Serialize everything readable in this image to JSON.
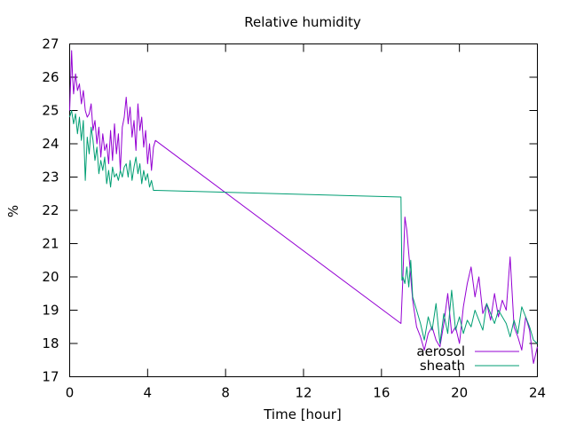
{
  "chart_data": {
    "type": "line",
    "title": "Relative humidity",
    "xlabel": "Time [hour]",
    "ylabel": "%",
    "xlim": [
      0,
      24
    ],
    "ylim": [
      17,
      27
    ],
    "xticks": [
      0,
      4,
      8,
      12,
      16,
      20,
      24
    ],
    "yticks": [
      17,
      18,
      19,
      20,
      21,
      22,
      23,
      24,
      25,
      26,
      27
    ],
    "grid": false,
    "legend_position": "bottom-right",
    "series": [
      {
        "name": "aerosol",
        "color": "#9400d3",
        "x": [
          0.0,
          0.1,
          0.15,
          0.2,
          0.3,
          0.4,
          0.5,
          0.6,
          0.7,
          0.8,
          0.9,
          1.0,
          1.1,
          1.2,
          1.3,
          1.4,
          1.5,
          1.6,
          1.7,
          1.8,
          1.9,
          2.0,
          2.1,
          2.2,
          2.3,
          2.4,
          2.5,
          2.6,
          2.7,
          2.8,
          2.9,
          3.0,
          3.1,
          3.2,
          3.3,
          3.4,
          3.5,
          3.6,
          3.7,
          3.8,
          3.9,
          4.0,
          4.1,
          4.2,
          4.3,
          4.4,
          17.0,
          17.1,
          17.2,
          17.3,
          17.4,
          17.5,
          17.6,
          17.8,
          18.0,
          18.2,
          18.4,
          18.6,
          18.8,
          19.0,
          19.2,
          19.4,
          19.6,
          19.8,
          20.0,
          20.2,
          20.4,
          20.6,
          20.8,
          21.0,
          21.2,
          21.4,
          21.6,
          21.8,
          22.0,
          22.2,
          22.4,
          22.6,
          22.8,
          23.0,
          23.2,
          23.4,
          23.6,
          23.8,
          24.0
        ],
        "y": [
          25.0,
          26.8,
          26.0,
          25.5,
          26.1,
          25.6,
          25.8,
          25.2,
          25.6,
          25.0,
          24.8,
          24.9,
          25.2,
          24.4,
          24.7,
          24.0,
          24.5,
          23.6,
          24.3,
          23.8,
          24.0,
          23.4,
          24.4,
          23.5,
          24.6,
          23.7,
          24.3,
          23.2,
          24.5,
          24.8,
          25.4,
          24.6,
          25.1,
          24.2,
          24.7,
          23.8,
          25.2,
          24.4,
          24.8,
          23.9,
          24.4,
          23.4,
          24.0,
          23.2,
          23.9,
          24.1,
          18.6,
          20.0,
          21.8,
          21.4,
          20.7,
          20.0,
          19.3,
          18.5,
          18.2,
          17.8,
          18.3,
          18.5,
          18.1,
          17.9,
          18.6,
          19.5,
          18.3,
          18.5,
          18.0,
          19.1,
          19.8,
          20.3,
          19.4,
          20.0,
          18.9,
          19.2,
          18.7,
          19.5,
          18.8,
          19.3,
          19.0,
          20.6,
          18.5,
          18.2,
          17.8,
          18.8,
          18.4,
          17.4,
          17.9
        ]
      },
      {
        "name": "sheath",
        "color": "#009e73",
        "x": [
          0.0,
          0.1,
          0.2,
          0.3,
          0.4,
          0.5,
          0.6,
          0.7,
          0.8,
          0.9,
          1.0,
          1.1,
          1.2,
          1.3,
          1.4,
          1.5,
          1.6,
          1.7,
          1.8,
          1.9,
          2.0,
          2.1,
          2.2,
          2.3,
          2.4,
          2.5,
          2.6,
          2.7,
          2.8,
          2.9,
          3.0,
          3.1,
          3.2,
          3.3,
          3.4,
          3.5,
          3.6,
          3.7,
          3.8,
          3.9,
          4.0,
          4.1,
          4.2,
          4.3,
          4.4,
          17.0,
          17.05,
          17.1,
          17.2,
          17.3,
          17.4,
          17.5,
          17.6,
          17.8,
          18.0,
          18.2,
          18.4,
          18.6,
          18.8,
          19.0,
          19.2,
          19.4,
          19.6,
          19.8,
          20.0,
          20.2,
          20.4,
          20.6,
          20.8,
          21.0,
          21.2,
          21.4,
          21.6,
          21.8,
          22.0,
          22.2,
          22.4,
          22.6,
          22.8,
          23.0,
          23.2,
          23.4,
          23.6,
          23.8,
          24.0
        ],
        "y": [
          24.8,
          25.0,
          24.6,
          24.9,
          24.3,
          24.8,
          24.1,
          24.7,
          22.9,
          24.2,
          23.7,
          24.5,
          24.1,
          23.5,
          23.9,
          23.1,
          23.5,
          23.2,
          23.6,
          22.8,
          23.2,
          22.7,
          23.3,
          23.0,
          23.1,
          22.9,
          23.2,
          23.0,
          23.3,
          23.4,
          23.0,
          23.5,
          22.9,
          23.3,
          23.6,
          23.1,
          23.4,
          22.8,
          23.2,
          22.9,
          23.1,
          22.7,
          22.9,
          22.6,
          22.6,
          22.4,
          19.9,
          20.0,
          19.8,
          20.3,
          19.7,
          20.5,
          19.4,
          19.0,
          18.6,
          18.1,
          18.8,
          18.4,
          19.2,
          18.0,
          18.9,
          18.3,
          19.6,
          18.4,
          18.8,
          18.3,
          18.7,
          18.5,
          19.0,
          18.7,
          18.4,
          19.2,
          18.9,
          18.6,
          19.0,
          18.8,
          18.6,
          18.2,
          18.7,
          18.3,
          19.1,
          18.8,
          18.5,
          18.1,
          18.0
        ]
      }
    ]
  }
}
